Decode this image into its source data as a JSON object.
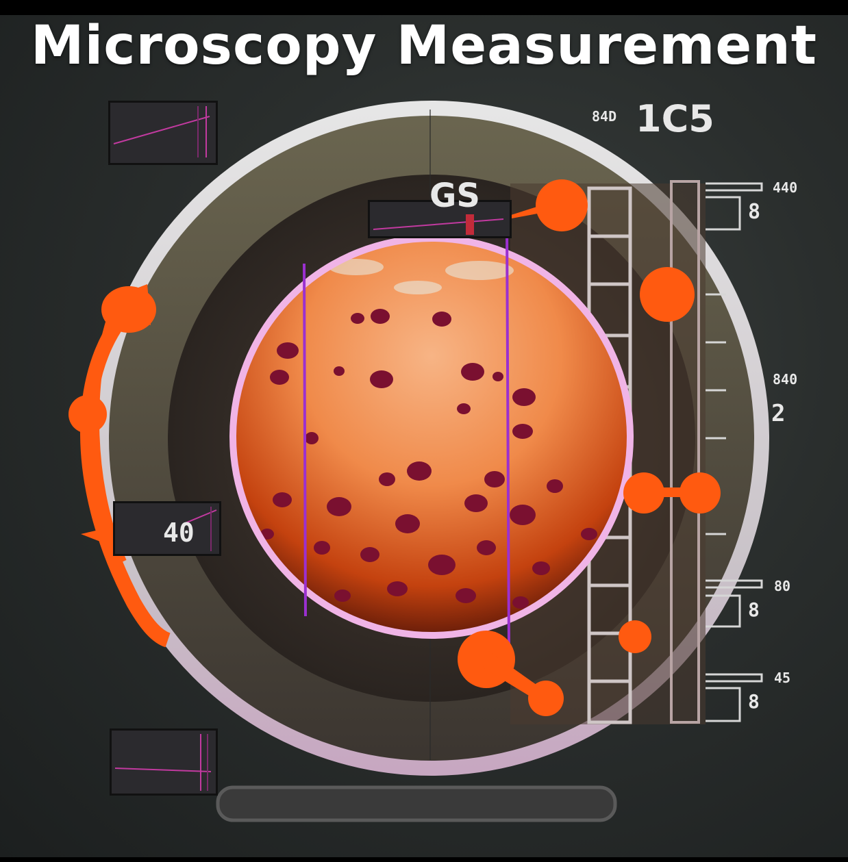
{
  "title": "Microscopy Measurement",
  "labels": {
    "top_small": "84D",
    "top_large": "1C5",
    "center_tag": "GS",
    "scale_1_small": "440",
    "scale_1_large": "8",
    "scale_2_small": "840",
    "scale_2_large": "2",
    "scale_3_small": "80",
    "scale_3_large": "8",
    "scale_4_small": "45",
    "scale_4_large": "8",
    "left_readout": "40"
  },
  "colors": {
    "accent": "#ff5a10",
    "lens_ring": "#d9d3d3",
    "specimen": "#f08a4a",
    "measure_line": "#9b30d0"
  }
}
